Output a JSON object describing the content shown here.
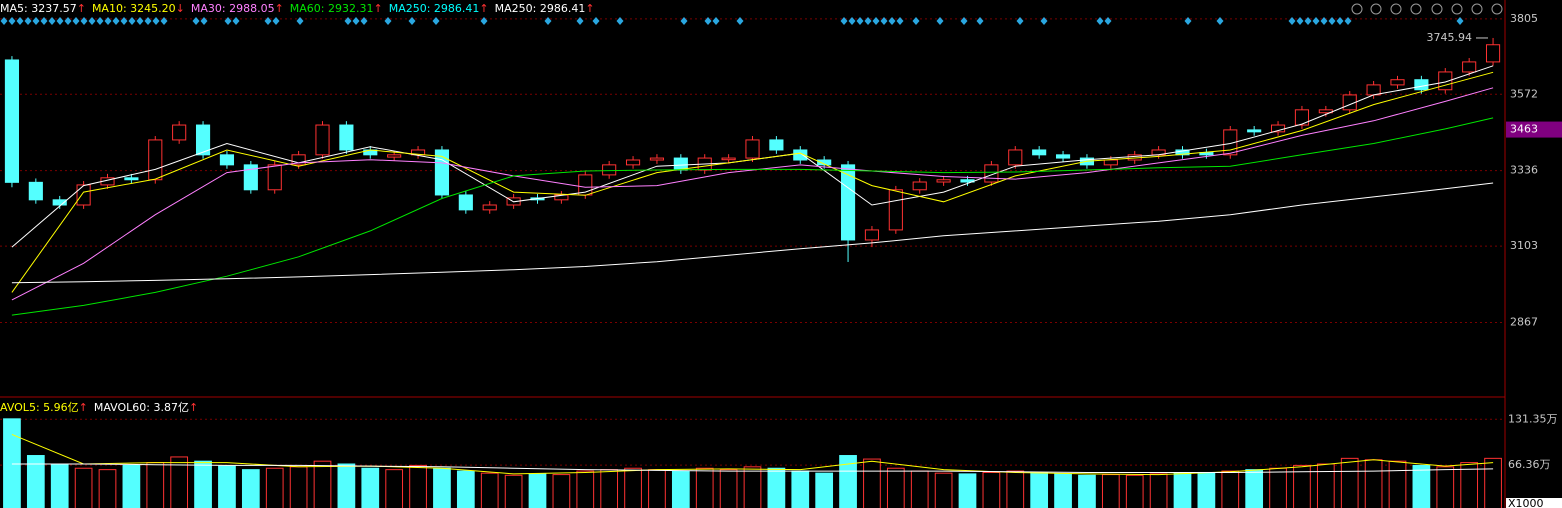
{
  "chart_data": {
    "type": "candlestick",
    "legend": [
      {
        "text": "MA5: 3237.57",
        "arrow": "↑",
        "color": "#ffffff"
      },
      {
        "text": "MA10: 3245.20",
        "arrow": "↓",
        "color": "#ffff00"
      },
      {
        "text": "MA30: 2988.05",
        "arrow": "↑",
        "color": "#ff80ff"
      },
      {
        "text": "MA60: 2932.31",
        "arrow": "↑",
        "color": "#00e600"
      },
      {
        "text": "MA250: 2986.41",
        "arrow": "↑",
        "color": "#00ffff"
      },
      {
        "text": "MA250: 2986.41",
        "arrow": "↑",
        "color": "#ffffff"
      }
    ],
    "volume_legend": [
      {
        "text": "AVOL5: 5.96亿",
        "arrow": "↑",
        "color": "#ffff00"
      },
      {
        "text": "MAVOL60: 3.87亿",
        "arrow": "↑",
        "color": "#ffffff"
      }
    ],
    "up_color": "#ff3232",
    "down_color": "#54ffff",
    "ylim": [
      2640,
      3820
    ],
    "yticks": [
      3805,
      3572,
      3336,
      3103,
      2867
    ],
    "cursor_price": 3463,
    "high_marker": 3745.94,
    "open": [
      3678,
      3300,
      3246,
      3230,
      3292,
      3314,
      3308,
      3431,
      3477,
      3385,
      3354,
      3277,
      3354,
      3385,
      3477,
      3400,
      3378,
      3385,
      3400,
      3261,
      3215,
      3230,
      3252,
      3246,
      3261,
      3323,
      3354,
      3369,
      3375,
      3338,
      3370,
      3375,
      3431,
      3400,
      3369,
      3354,
      3122,
      3153,
      3277,
      3301,
      3308,
      3301,
      3354,
      3400,
      3385,
      3375,
      3354,
      3369,
      3385,
      3400,
      3392,
      3385,
      3462,
      3456,
      3477,
      3515,
      3524,
      3570,
      3601,
      3617,
      3586,
      3641,
      3672
    ],
    "high": [
      3690,
      3312,
      3258,
      3304,
      3326,
      3326,
      3443,
      3489,
      3489,
      3397,
      3366,
      3366,
      3397,
      3489,
      3489,
      3412,
      3397,
      3412,
      3412,
      3273,
      3242,
      3264,
      3264,
      3273,
      3335,
      3366,
      3381,
      3387,
      3387,
      3387,
      3387,
      3443,
      3443,
      3412,
      3381,
      3366,
      3165,
      3289,
      3313,
      3320,
      3320,
      3366,
      3412,
      3412,
      3397,
      3387,
      3381,
      3397,
      3412,
      3412,
      3404,
      3474,
      3474,
      3489,
      3536,
      3536,
      3582,
      3613,
      3629,
      3629,
      3653,
      3684,
      3746
    ],
    "low": [
      3285,
      3234,
      3218,
      3218,
      3280,
      3296,
      3296,
      3419,
      3373,
      3342,
      3265,
      3265,
      3342,
      3373,
      3388,
      3373,
      3366,
      3373,
      3249,
      3203,
      3203,
      3218,
      3234,
      3234,
      3249,
      3311,
      3342,
      3357,
      3326,
      3326,
      3358,
      3363,
      3388,
      3357,
      3342,
      3054,
      3100,
      3141,
      3265,
      3289,
      3289,
      3289,
      3342,
      3373,
      3363,
      3342,
      3342,
      3357,
      3373,
      3373,
      3373,
      3373,
      3444,
      3444,
      3465,
      3503,
      3512,
      3558,
      3589,
      3574,
      3574,
      3629,
      3660
    ],
    "close": [
      3300,
      3246,
      3230,
      3292,
      3314,
      3308,
      3431,
      3477,
      3385,
      3354,
      3277,
      3354,
      3385,
      3477,
      3400,
      3385,
      3385,
      3400,
      3261,
      3215,
      3230,
      3252,
      3246,
      3261,
      3323,
      3354,
      3369,
      3375,
      3338,
      3375,
      3375,
      3431,
      3400,
      3369,
      3354,
      3122,
      3153,
      3277,
      3301,
      3308,
      3301,
      3354,
      3400,
      3385,
      3375,
      3354,
      3369,
      3385,
      3400,
      3385,
      3385,
      3462,
      3456,
      3477,
      3524,
      3524,
      3570,
      3601,
      3617,
      3586,
      3641,
      3672,
      3725
    ],
    "ma_index": [
      0,
      3,
      6,
      9,
      12,
      15,
      18,
      21,
      24,
      27,
      30,
      33,
      36,
      39,
      42,
      45,
      48,
      51,
      54,
      57,
      60,
      62
    ],
    "ma_series": [
      {
        "color": "#ffffff",
        "values": [
          3100,
          3290,
          3340,
          3420,
          3360,
          3410,
          3370,
          3240,
          3270,
          3350,
          3360,
          3390,
          3230,
          3270,
          3350,
          3370,
          3385,
          3420,
          3480,
          3570,
          3610,
          3660
        ]
      },
      {
        "color": "#ffff00",
        "values": [
          2960,
          3270,
          3310,
          3400,
          3350,
          3400,
          3380,
          3270,
          3260,
          3330,
          3360,
          3390,
          3290,
          3240,
          3320,
          3365,
          3380,
          3400,
          3460,
          3540,
          3600,
          3640
        ]
      },
      {
        "color": "#ff80ff",
        "values": [
          2937,
          3050,
          3200,
          3330,
          3360,
          3370,
          3360,
          3320,
          3285,
          3290,
          3330,
          3354,
          3335,
          3318,
          3310,
          3330,
          3360,
          3390,
          3445,
          3490,
          3550,
          3592
        ]
      },
      {
        "color": "#00e600",
        "values": [
          2890,
          2920,
          2960,
          3010,
          3070,
          3150,
          3250,
          3320,
          3335,
          3338,
          3340,
          3340,
          3335,
          3330,
          3332,
          3338,
          3345,
          3350,
          3385,
          3420,
          3465,
          3499
        ]
      },
      {
        "color": "#ffffff",
        "values": [
          2990,
          2993,
          2997,
          3002,
          3008,
          3015,
          3022,
          3030,
          3040,
          3055,
          3075,
          3095,
          3113,
          3135,
          3150,
          3165,
          3180,
          3200,
          3230,
          3255,
          3280,
          3298
        ]
      }
    ],
    "volume": [
      132,
      80,
      68,
      62,
      60,
      66,
      70,
      78,
      72,
      65,
      60,
      62,
      64,
      72,
      68,
      62,
      60,
      66,
      62,
      58,
      55,
      52,
      54,
      53,
      58,
      60,
      62,
      60,
      58,
      62,
      60,
      64,
      62,
      58,
      55,
      80,
      75,
      62,
      58,
      55,
      54,
      56,
      58,
      56,
      54,
      52,
      53,
      52,
      54,
      55,
      56,
      58,
      60,
      62,
      66,
      68,
      76,
      74,
      72,
      66,
      64,
      70,
      76
    ],
    "vlim": [
      0,
      153
    ],
    "vticks": [
      {
        "value": 131.35,
        "label": "131.35万"
      },
      {
        "value": 66.36,
        "label": "66.36万"
      }
    ],
    "volume_unit": "X1000",
    "volume_ma_series": [
      {
        "color": "#ffff00",
        "values": [
          110,
          68,
          70,
          70,
          64,
          65,
          62,
          54,
          56,
          60,
          61,
          60,
          72,
          60,
          56,
          54,
          53,
          57,
          64,
          74,
          65,
          70
        ]
      },
      {
        "color": "#ffffff",
        "values": [
          68,
          68,
          67,
          66,
          66,
          65,
          64,
          62,
          60,
          59,
          58,
          58,
          58,
          58,
          57,
          56,
          56,
          56,
          57,
          58,
          60,
          61
        ]
      }
    ]
  }
}
